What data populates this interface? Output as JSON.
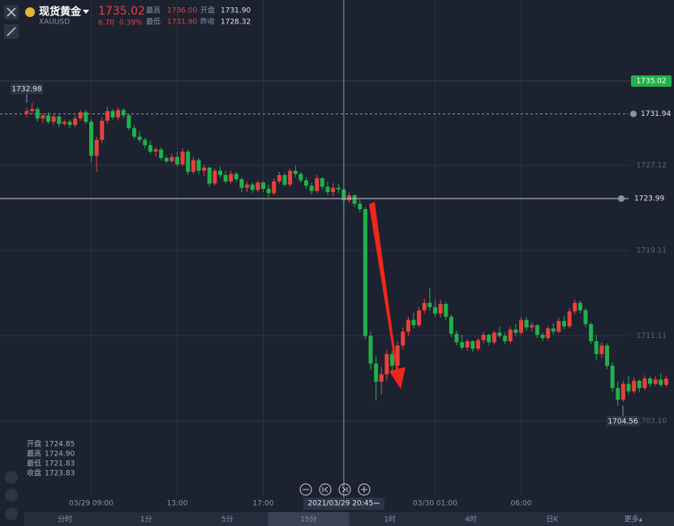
{
  "header": {
    "name": "现货黄金",
    "symbol": "XAUUSD",
    "price": "1735.02",
    "change": "6.70",
    "change_pct": "0.39%",
    "high_label": "最高",
    "high": "1736.00",
    "open_label": "开盘",
    "open": "1731.90",
    "low_label": "最低",
    "low": "1731.90",
    "prev_close_label": "昨收",
    "prev_close": "1728.32"
  },
  "ohlc_panel": {
    "labels": [
      "开盘",
      "最高",
      "最低",
      "收盘"
    ],
    "values": [
      "1724.85",
      "1724.90",
      "1721.83",
      "1723.83"
    ]
  },
  "intervals": [
    "分时",
    "1分",
    "5分",
    "15分",
    "1时",
    "4时",
    "日K",
    "更多▴"
  ],
  "selected_interval": 3,
  "chart_data": {
    "type": "candlestick",
    "up_color": "#e8413d",
    "down_color": "#1fb24a",
    "ylim": [
      1694.7,
      1742.63
    ],
    "yticks": [
      1727.12,
      1719.11,
      1711.11,
      {
        "value": 1703.1,
        "label": "1703.10"
      }
    ],
    "xticks": [
      {
        "value": 12,
        "label": "03/29 09:00"
      },
      {
        "value": 28,
        "label": "13:00"
      },
      {
        "value": 44,
        "label": "17:00"
      },
      {
        "value": 76,
        "label": "03/30 01:00"
      },
      {
        "value": 92,
        "label": "06:00"
      }
    ],
    "last_price": 1735.02,
    "alerts": [
      1731.94,
      1723.99
    ],
    "high_marker": 1732.98,
    "low_marker": 1704.56,
    "crosshair": {
      "index": 59,
      "label": "2021/03/29 20:45"
    },
    "ohlc": [
      [
        1732.0,
        1732.5,
        1731.6,
        1732.2
      ],
      [
        1732.2,
        1732.98,
        1731.9,
        1732.4
      ],
      [
        1732.4,
        1732.6,
        1731.2,
        1731.5
      ],
      [
        1731.5,
        1732.0,
        1731.1,
        1731.8
      ],
      [
        1731.8,
        1732.1,
        1731.0,
        1731.2
      ],
      [
        1731.2,
        1731.9,
        1730.9,
        1731.7
      ],
      [
        1731.7,
        1731.8,
        1730.7,
        1731.0
      ],
      [
        1731.0,
        1731.4,
        1730.8,
        1731.2
      ],
      [
        1731.2,
        1731.4,
        1730.6,
        1730.9
      ],
      [
        1730.9,
        1731.8,
        1730.7,
        1731.5
      ],
      [
        1731.5,
        1732.3,
        1731.3,
        1732.1
      ],
      [
        1732.1,
        1732.3,
        1731.0,
        1731.2
      ],
      [
        1731.2,
        1731.4,
        1727.4,
        1728.0
      ],
      [
        1728.0,
        1729.8,
        1726.5,
        1729.5
      ],
      [
        1729.5,
        1731.6,
        1729.2,
        1731.3
      ],
      [
        1731.3,
        1732.6,
        1731.0,
        1732.2
      ],
      [
        1732.2,
        1732.4,
        1731.4,
        1731.6
      ],
      [
        1731.6,
        1732.5,
        1731.3,
        1732.3
      ],
      [
        1732.3,
        1732.5,
        1731.5,
        1731.8
      ],
      [
        1731.8,
        1731.9,
        1730.4,
        1730.6
      ],
      [
        1730.6,
        1730.9,
        1729.6,
        1729.8
      ],
      [
        1729.8,
        1730.3,
        1729.3,
        1729.5
      ],
      [
        1729.5,
        1729.7,
        1728.7,
        1729.0
      ],
      [
        1729.0,
        1729.4,
        1728.2,
        1728.4
      ],
      [
        1728.4,
        1728.8,
        1727.9,
        1728.6
      ],
      [
        1728.6,
        1728.8,
        1727.6,
        1727.8
      ],
      [
        1727.8,
        1728.0,
        1727.3,
        1727.5
      ],
      [
        1727.5,
        1728.2,
        1727.3,
        1727.9
      ],
      [
        1727.9,
        1728.4,
        1727.0,
        1727.2
      ],
      [
        1727.2,
        1728.7,
        1727.0,
        1728.4
      ],
      [
        1728.4,
        1728.6,
        1726.2,
        1726.5
      ],
      [
        1726.5,
        1727.9,
        1726.3,
        1727.6
      ],
      [
        1727.6,
        1727.8,
        1726.3,
        1726.6
      ],
      [
        1726.6,
        1727.2,
        1726.1,
        1726.9
      ],
      [
        1726.9,
        1727.0,
        1725.1,
        1725.4
      ],
      [
        1725.4,
        1726.8,
        1725.2,
        1726.6
      ],
      [
        1726.6,
        1727.0,
        1725.9,
        1726.2
      ],
      [
        1726.2,
        1726.6,
        1725.4,
        1725.6
      ],
      [
        1725.6,
        1726.6,
        1725.4,
        1726.3
      ],
      [
        1726.3,
        1726.5,
        1725.6,
        1725.8
      ],
      [
        1725.8,
        1726.0,
        1724.6,
        1725.0
      ],
      [
        1725.0,
        1725.6,
        1724.6,
        1725.3
      ],
      [
        1725.3,
        1725.5,
        1724.5,
        1724.8
      ],
      [
        1724.8,
        1725.7,
        1724.6,
        1725.5
      ],
      [
        1725.5,
        1725.6,
        1724.6,
        1724.9
      ],
      [
        1724.9,
        1725.3,
        1724.1,
        1724.5
      ],
      [
        1724.5,
        1725.9,
        1724.3,
        1725.6
      ],
      [
        1725.6,
        1726.5,
        1725.4,
        1726.2
      ],
      [
        1726.2,
        1726.4,
        1725.1,
        1725.3
      ],
      [
        1725.3,
        1726.8,
        1725.1,
        1726.6
      ],
      [
        1726.6,
        1727.1,
        1726.0,
        1726.3
      ],
      [
        1726.3,
        1726.5,
        1725.5,
        1725.7
      ],
      [
        1725.7,
        1726.0,
        1724.9,
        1725.2
      ],
      [
        1725.2,
        1725.5,
        1724.4,
        1724.7
      ],
      [
        1724.7,
        1726.2,
        1724.5,
        1725.9
      ],
      [
        1725.9,
        1726.0,
        1724.8,
        1725.1
      ],
      [
        1725.1,
        1725.6,
        1724.3,
        1724.6
      ],
      [
        1724.6,
        1725.4,
        1724.2,
        1725.0
      ],
      [
        1725.0,
        1725.4,
        1724.5,
        1724.85
      ],
      [
        1724.85,
        1724.9,
        1721.83,
        1723.83
      ],
      [
        1723.83,
        1724.6,
        1723.6,
        1724.3
      ],
      [
        1724.3,
        1724.4,
        1723.2,
        1723.5
      ],
      [
        1723.5,
        1723.9,
        1722.7,
        1723.0
      ],
      [
        1723.0,
        1723.2,
        1710.8,
        1711.1
      ],
      [
        1711.1,
        1711.5,
        1707.9,
        1708.5
      ],
      [
        1708.5,
        1709.2,
        1705.0,
        1706.8
      ],
      [
        1706.8,
        1708.2,
        1705.6,
        1707.5
      ],
      [
        1707.5,
        1709.8,
        1706.9,
        1709.4
      ],
      [
        1709.4,
        1709.7,
        1707.8,
        1708.3
      ],
      [
        1708.3,
        1710.6,
        1708.0,
        1710.2
      ],
      [
        1710.2,
        1711.9,
        1709.8,
        1711.5
      ],
      [
        1711.5,
        1712.9,
        1711.1,
        1712.6
      ],
      [
        1712.6,
        1713.3,
        1711.8,
        1712.1
      ],
      [
        1712.1,
        1713.8,
        1711.9,
        1713.5
      ],
      [
        1713.5,
        1714.6,
        1713.2,
        1714.2
      ],
      [
        1714.2,
        1715.6,
        1713.5,
        1713.8
      ],
      [
        1713.8,
        1714.4,
        1712.9,
        1713.2
      ],
      [
        1713.2,
        1714.5,
        1712.8,
        1714.1
      ],
      [
        1714.1,
        1714.3,
        1712.6,
        1712.9
      ],
      [
        1712.9,
        1713.1,
        1711.0,
        1711.3
      ],
      [
        1711.3,
        1711.6,
        1710.2,
        1710.5
      ],
      [
        1710.5,
        1711.2,
        1709.8,
        1710.0
      ],
      [
        1710.0,
        1710.8,
        1709.7,
        1710.6
      ],
      [
        1710.6,
        1710.7,
        1709.6,
        1709.9
      ],
      [
        1709.9,
        1710.9,
        1709.7,
        1710.7
      ],
      [
        1710.7,
        1711.5,
        1710.4,
        1711.2
      ],
      [
        1711.2,
        1711.3,
        1710.2,
        1710.5
      ],
      [
        1710.5,
        1711.6,
        1710.3,
        1711.4
      ],
      [
        1711.4,
        1712.0,
        1710.9,
        1711.1
      ],
      [
        1711.1,
        1711.4,
        1710.3,
        1710.6
      ],
      [
        1710.6,
        1712.0,
        1710.4,
        1711.7
      ],
      [
        1711.7,
        1712.2,
        1711.1,
        1711.4
      ],
      [
        1711.4,
        1712.9,
        1711.2,
        1712.6
      ],
      [
        1712.6,
        1712.9,
        1711.6,
        1711.9
      ],
      [
        1711.9,
        1712.4,
        1711.5,
        1712.1
      ],
      [
        1712.1,
        1712.2,
        1710.9,
        1711.2
      ],
      [
        1711.2,
        1711.4,
        1710.6,
        1710.9
      ],
      [
        1710.9,
        1712.0,
        1710.7,
        1711.8
      ],
      [
        1711.8,
        1712.3,
        1711.2,
        1711.5
      ],
      [
        1711.5,
        1712.8,
        1711.3,
        1712.5
      ],
      [
        1712.5,
        1713.0,
        1711.7,
        1712.0
      ],
      [
        1712.0,
        1713.7,
        1711.8,
        1713.4
      ],
      [
        1713.4,
        1714.5,
        1713.1,
        1714.2
      ],
      [
        1714.2,
        1714.4,
        1713.2,
        1713.5
      ],
      [
        1713.5,
        1713.7,
        1711.9,
        1712.2
      ],
      [
        1712.2,
        1712.4,
        1710.3,
        1710.6
      ],
      [
        1710.6,
        1711.2,
        1708.8,
        1709.4
      ],
      [
        1709.4,
        1710.5,
        1709.0,
        1710.2
      ],
      [
        1710.2,
        1710.4,
        1708.0,
        1708.3
      ],
      [
        1708.3,
        1708.6,
        1705.8,
        1706.2
      ],
      [
        1706.2,
        1706.8,
        1704.56,
        1705.1
      ],
      [
        1705.1,
        1706.9,
        1704.9,
        1706.6
      ],
      [
        1706.6,
        1707.3,
        1705.6,
        1705.9
      ],
      [
        1705.9,
        1707.2,
        1705.7,
        1706.9
      ],
      [
        1706.9,
        1707.0,
        1705.8,
        1706.2
      ],
      [
        1706.2,
        1707.4,
        1706.0,
        1707.1
      ],
      [
        1707.1,
        1707.3,
        1706.3,
        1706.6
      ],
      [
        1706.6,
        1707.3,
        1706.4,
        1707.0
      ],
      [
        1707.0,
        1707.6,
        1706.3,
        1706.5
      ],
      [
        1706.5,
        1707.4,
        1706.3,
        1707.1
      ]
    ]
  }
}
